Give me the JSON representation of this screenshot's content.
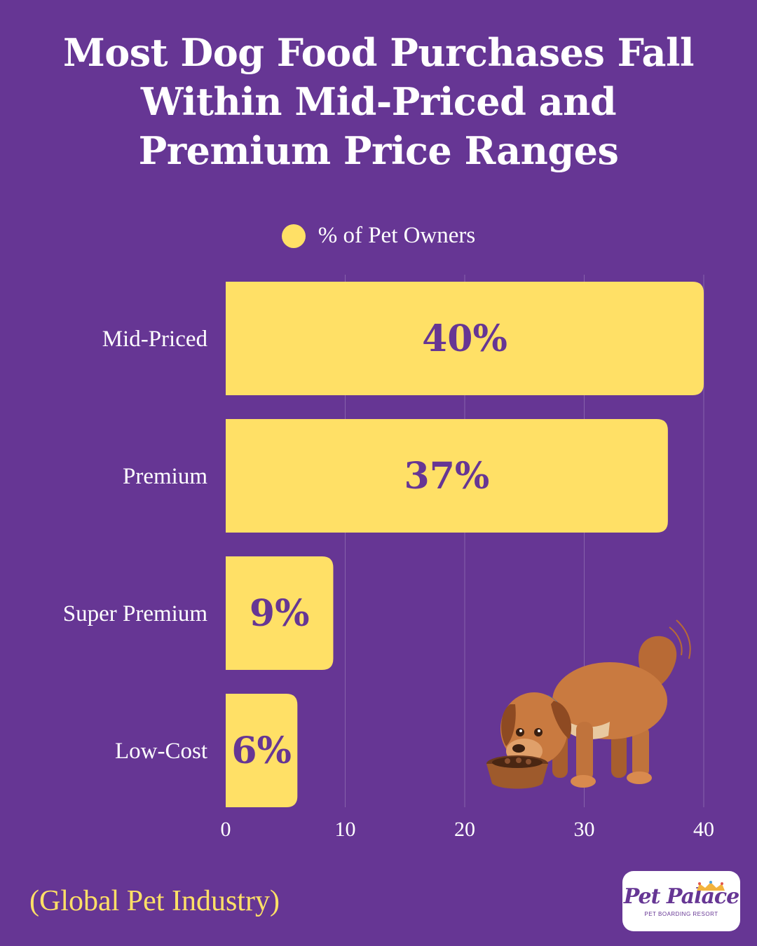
{
  "title_lines": [
    "Most Dog Food Purchases Fall",
    "Within Mid-Priced and",
    "Premium Price Ranges"
  ],
  "legend": {
    "label": "% of Pet Owners"
  },
  "source": "(Global Pet Industry)",
  "logo": {
    "script": "Pet Palace",
    "subtitle": "PET BOARDING RESORT"
  },
  "colors": {
    "background": "#663694",
    "bar": "#FFE066",
    "bar_label": "#663694",
    "text": "#FFFFFF",
    "source_text": "#FFE066"
  },
  "chart_data": {
    "type": "bar",
    "orientation": "horizontal",
    "categories": [
      "Mid-Priced",
      "Premium",
      "Super Premium",
      "Low-Cost"
    ],
    "series": [
      {
        "name": "% of Pet Owners",
        "values": [
          40,
          37,
          9,
          6
        ]
      }
    ],
    "data_labels": [
      "40%",
      "37%",
      "9%",
      "6%"
    ],
    "xlim": [
      0,
      40
    ],
    "xticks": [
      0,
      10,
      20,
      30,
      40
    ],
    "grid": "vertical",
    "legend_position": "top-center"
  }
}
